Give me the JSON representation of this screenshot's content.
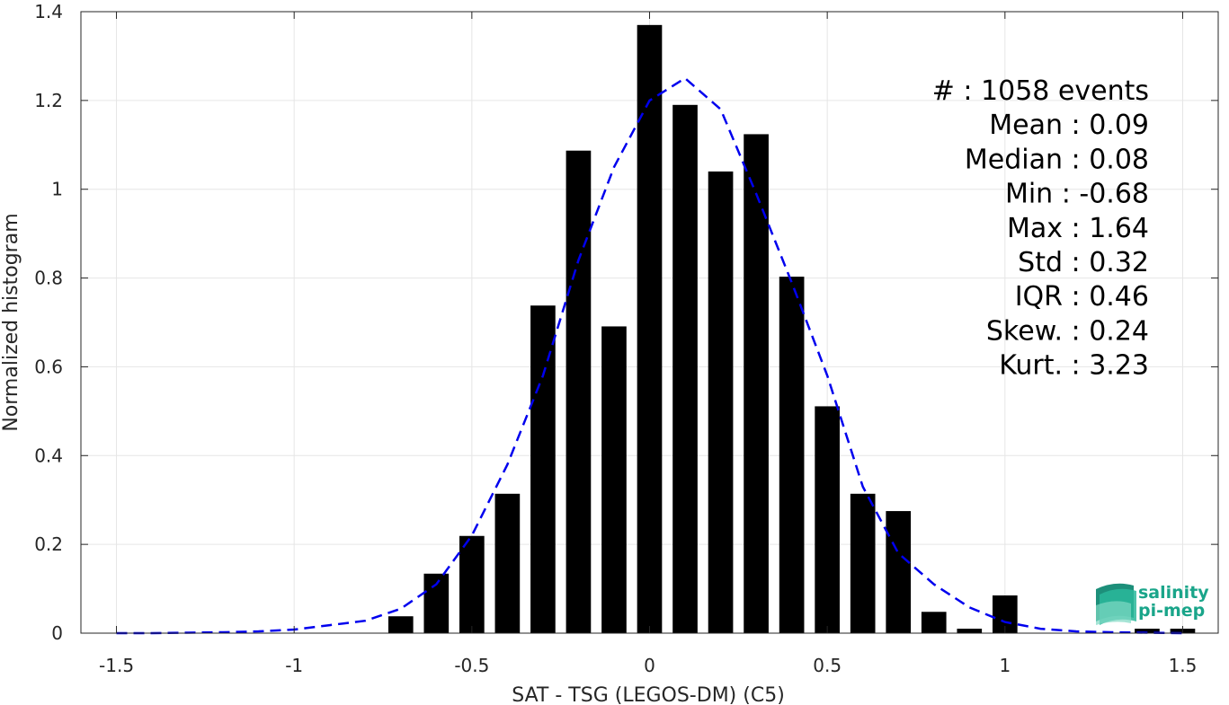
{
  "chart_data": {
    "type": "bar",
    "xlabel": "SAT - TSG (LEGOS-DM) (C5)",
    "ylabel": "Normalized histogram",
    "xlim": [
      -1.6,
      1.6
    ],
    "ylim": [
      0,
      1.4
    ],
    "x_ticks": [
      -1.5,
      -1,
      -0.5,
      0,
      0.5,
      1,
      1.5
    ],
    "x_tick_labels": [
      "-1.5",
      "-1",
      "-0.5",
      "0",
      "0.5",
      "1",
      "1.5"
    ],
    "y_ticks": [
      0,
      0.2,
      0.4,
      0.6,
      0.8,
      1,
      1.2,
      1.4
    ],
    "y_tick_labels": [
      "0",
      "0.2",
      "0.4",
      "0.6",
      "0.8",
      "1",
      "1.2",
      "1.4"
    ],
    "grid": true,
    "bin_width": 0.1,
    "bar_width": 0.07,
    "bar_color": "#000000",
    "series": [
      {
        "x": [
          -0.7,
          -0.6,
          -0.5,
          -0.4,
          -0.3,
          -0.2,
          -0.1,
          0.0,
          0.1,
          0.2,
          0.3,
          0.4,
          0.5,
          0.6,
          0.7,
          0.8,
          0.9,
          1.0,
          1.4,
          1.5
        ],
        "values": [
          0.038,
          0.134,
          0.219,
          0.314,
          0.738,
          1.087,
          0.691,
          1.37,
          1.19,
          1.04,
          1.124,
          0.803,
          0.511,
          0.314,
          0.275,
          0.048,
          0.01,
          0.085,
          0.01,
          0.01
        ]
      }
    ],
    "fit_curve": {
      "color": "#0000ee",
      "style": "dashed",
      "x": [
        -1.5,
        -1.4,
        -1.3,
        -1.2,
        -1.1,
        -1.0,
        -0.9,
        -0.8,
        -0.7,
        -0.6,
        -0.5,
        -0.4,
        -0.3,
        -0.2,
        -0.1,
        0.0,
        0.1,
        0.2,
        0.3,
        0.4,
        0.5,
        0.6,
        0.7,
        0.8,
        0.9,
        1.0,
        1.1,
        1.2,
        1.3,
        1.4,
        1.5
      ],
      "y": [
        0.0,
        0.0,
        0.001,
        0.002,
        0.004,
        0.008,
        0.018,
        0.028,
        0.055,
        0.11,
        0.22,
        0.38,
        0.58,
        0.84,
        1.05,
        1.2,
        1.25,
        1.18,
        0.99,
        0.79,
        0.58,
        0.33,
        0.18,
        0.11,
        0.058,
        0.025,
        0.01,
        0.004,
        0.002,
        0.001,
        0.0
      ]
    },
    "annotations": [
      "#  : 1058 events",
      "Mean : 0.09",
      "Median : 0.08",
      "Min : -0.68",
      "Max : 1.64",
      "Std : 0.32",
      "IQR : 0.46",
      "Skew. : 0.24",
      "Kurt. : 3.23"
    ]
  },
  "logo": {
    "line1": "salinity",
    "line2": "pi-mep",
    "icon": "wave-layers-icon",
    "color": "#1aa58a"
  }
}
